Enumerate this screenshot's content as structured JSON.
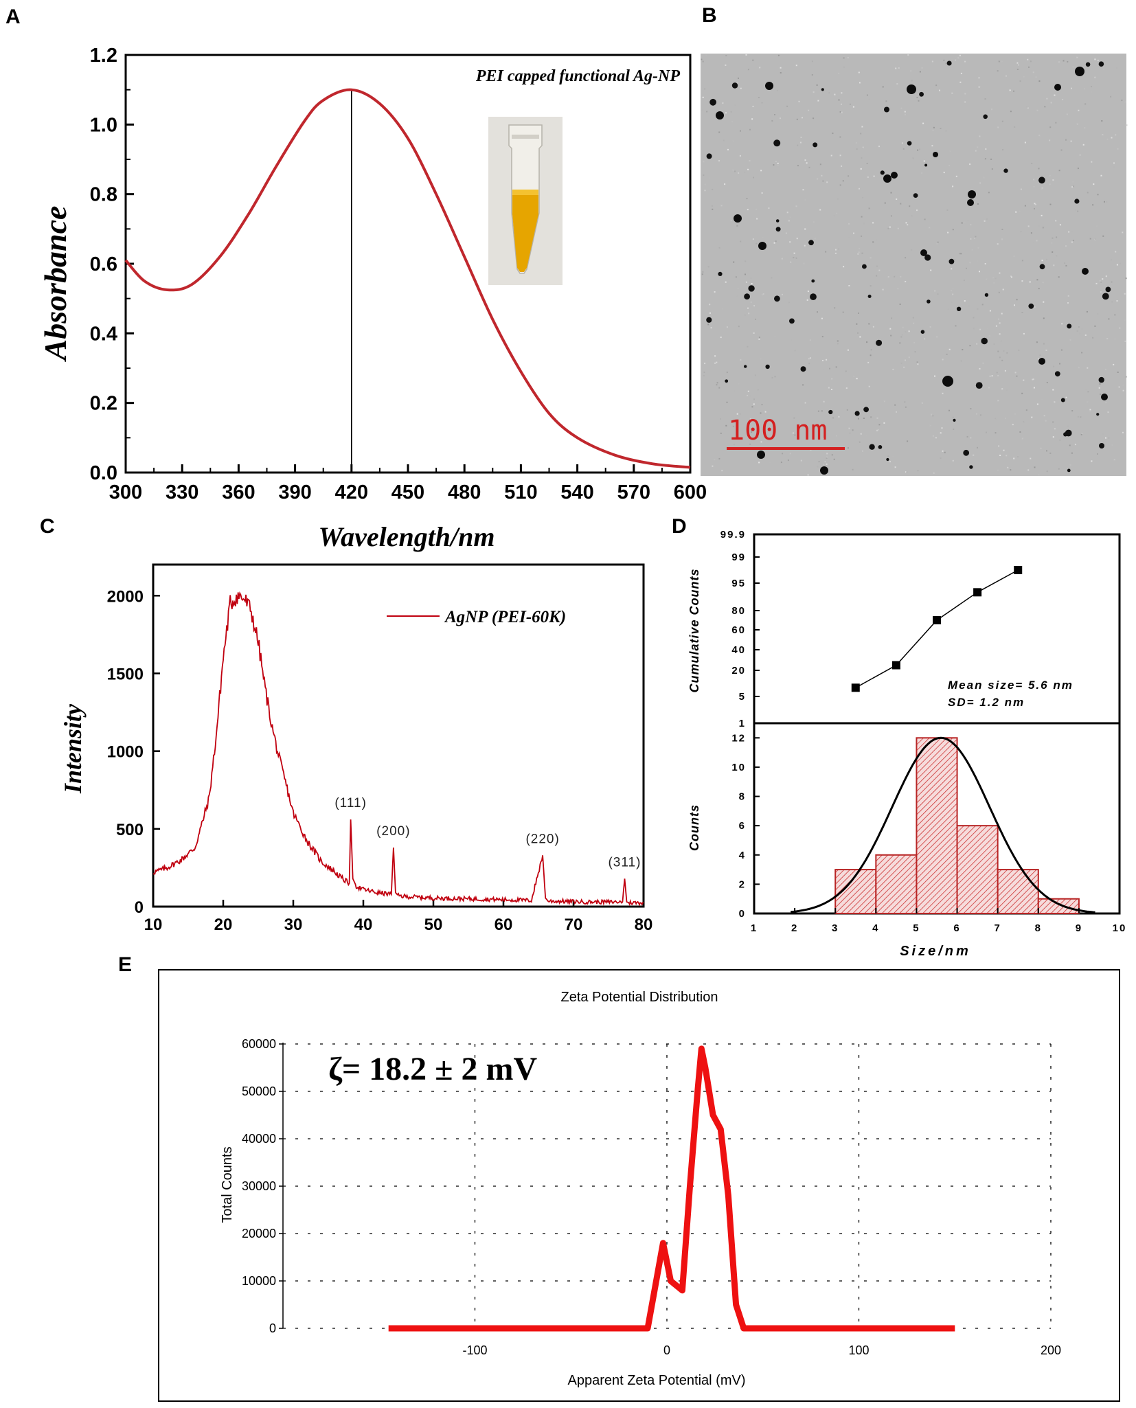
{
  "panels": {
    "a": {
      "letter": "A"
    },
    "b": {
      "letter": "B",
      "scale_bar_label": "100 nm"
    },
    "c": {
      "letter": "C"
    },
    "d": {
      "letter": "D",
      "mean_size": "Mean size= 5.6 nm",
      "sd": "SD= 1.2 nm"
    },
    "e": {
      "letter": "E",
      "zeta_value": "ζ= 18.2 ± 2 mV"
    }
  },
  "colors": {
    "curve_red": "#c0272d",
    "xrd_red": "#c0000f",
    "zeta_red": "#ee1111",
    "hist_red": "#cc3333",
    "tem_bg": "#b9b9b9"
  },
  "chart_data": [
    {
      "id": "A",
      "type": "line",
      "title": "PEI capped functional Ag-NP",
      "xlabel": "Wavelength/nm",
      "ylabel": "Absorbance",
      "xlim": [
        300,
        600
      ],
      "ylim": [
        0,
        1.2
      ],
      "xticks": [
        "300",
        "330",
        "360",
        "390",
        "420",
        "450",
        "480",
        "510",
        "540",
        "570",
        "600"
      ],
      "yticks": [
        "0.0",
        "0.2",
        "0.4",
        "0.6",
        "0.8",
        "1.0",
        "1.2"
      ],
      "marker_x": 420,
      "x": [
        300,
        310,
        322,
        335,
        350,
        365,
        380,
        395,
        405,
        420,
        435,
        450,
        465,
        480,
        495,
        510,
        525,
        540,
        560,
        580,
        600
      ],
      "y": [
        0.61,
        0.55,
        0.525,
        0.54,
        0.62,
        0.74,
        0.88,
        1.01,
        1.07,
        1.1,
        1.06,
        0.96,
        0.8,
        0.62,
        0.44,
        0.29,
        0.17,
        0.1,
        0.05,
        0.025,
        0.015
      ]
    },
    {
      "id": "C",
      "type": "line",
      "xlabel": "",
      "ylabel": "Intensity",
      "legend": "AgNP (PEI-60K)",
      "xlim": [
        10,
        80
      ],
      "ylim": [
        0,
        2200
      ],
      "xticks": [
        "10",
        "20",
        "30",
        "40",
        "50",
        "60",
        "70",
        "80"
      ],
      "yticks": [
        "0",
        "500",
        "1000",
        "1500",
        "2000"
      ],
      "x": [
        10,
        12,
        14,
        16,
        18,
        19,
        20,
        21,
        22,
        23,
        24,
        25,
        26,
        27,
        28,
        29,
        30,
        32,
        34,
        36,
        37,
        38,
        38.2,
        38.5,
        39,
        40,
        42,
        44,
        44.3,
        44.6,
        45,
        46,
        48,
        50,
        55,
        60,
        64,
        65.6,
        66,
        66.4,
        68,
        72,
        76,
        77,
        77.3,
        77.6,
        78,
        80
      ],
      "y": [
        220,
        250,
        300,
        380,
        700,
        1100,
        1600,
        1950,
        2000,
        1980,
        1900,
        1700,
        1400,
        1150,
        950,
        780,
        600,
        420,
        290,
        220,
        180,
        150,
        560,
        180,
        130,
        110,
        90,
        80,
        380,
        90,
        70,
        65,
        60,
        55,
        50,
        45,
        40,
        330,
        55,
        35,
        35,
        30,
        30,
        30,
        180,
        30,
        25,
        25
      ],
      "peak_labels": [
        {
          "label": "(111)",
          "x": 38.2,
          "y": 560
        },
        {
          "label": "(200)",
          "x": 44.3,
          "y": 380
        },
        {
          "label": "(220)",
          "x": 65.6,
          "y": 330
        },
        {
          "label": "(311)",
          "x": 77.3,
          "y": 180
        }
      ]
    },
    {
      "id": "D_top",
      "type": "scatter",
      "ylabel": "Cumulative Counts",
      "yticks": [
        "1",
        "5",
        "20",
        "40",
        "60",
        "80",
        "95",
        "99",
        "99.9"
      ],
      "x": [
        3.5,
        4.5,
        5.5,
        6.5,
        7.5
      ],
      "y": [
        10,
        25,
        70,
        90,
        97
      ]
    },
    {
      "id": "D_bottom",
      "type": "bar",
      "xlabel": "Size/nm",
      "ylabel": "Counts",
      "xlim": [
        1,
        10
      ],
      "ylim": [
        0,
        13
      ],
      "xticks": [
        "1",
        "2",
        "3",
        "4",
        "5",
        "6",
        "7",
        "8",
        "9",
        "10"
      ],
      "yticks": [
        "0",
        "2",
        "4",
        "6",
        "8",
        "10",
        "12"
      ],
      "bin_edges": [
        3,
        4,
        5,
        6,
        7,
        8,
        9
      ],
      "values": [
        3,
        4,
        12,
        6,
        3,
        1
      ],
      "fit": {
        "type": "gaussian",
        "mean": 5.6,
        "sd": 1.2,
        "peak": 12
      }
    },
    {
      "id": "E",
      "type": "line",
      "title": "Zeta Potential Distribution",
      "xlabel": "Apparent Zeta Potential (mV)",
      "ylabel": "Total Counts",
      "xlim": [
        -200,
        200
      ],
      "ylim": [
        0,
        60000
      ],
      "xticks": [
        "-100",
        "0",
        "100",
        "200"
      ],
      "yticks": [
        "0",
        "10000",
        "20000",
        "30000",
        "40000",
        "50000",
        "60000"
      ],
      "x": [
        -145,
        -10,
        -6,
        -2,
        2,
        8,
        12,
        16,
        18,
        20,
        24,
        28,
        32,
        36,
        40,
        150
      ],
      "y": [
        0,
        0,
        9000,
        18000,
        10000,
        8000,
        30000,
        50000,
        59000,
        55000,
        45000,
        42000,
        28000,
        5000,
        0,
        0
      ]
    }
  ]
}
